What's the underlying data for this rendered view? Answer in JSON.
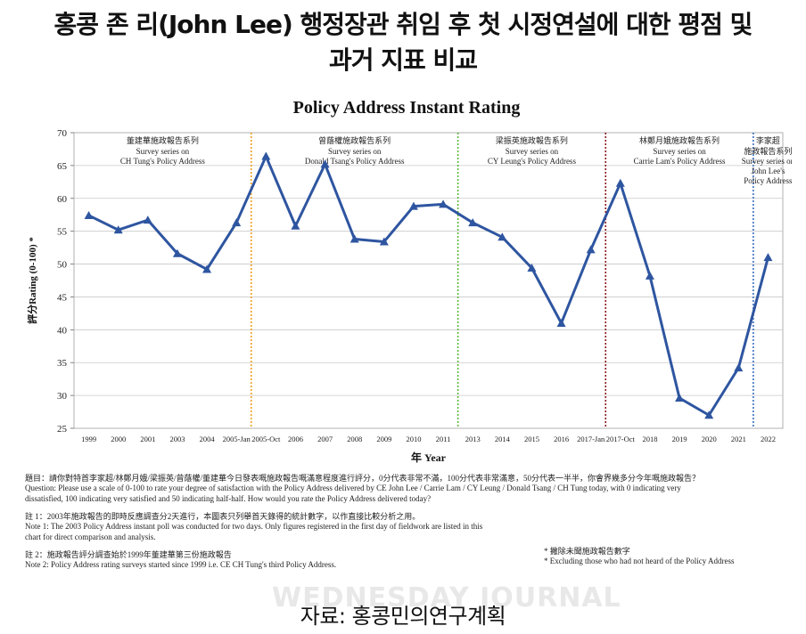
{
  "headline": {
    "line1": "홍콩 존 리(John Lee) 행정장관 취임 후 첫 시정연설에 대한 평점 및",
    "line2": "과거 지표 비교"
  },
  "chart_data": {
    "type": "line",
    "title": "Policy Address Instant Rating",
    "xlabel": "年 Year",
    "ylabel": "評分Rating (0-100) *",
    "ylim": [
      25,
      70
    ],
    "yticks": [
      25,
      30,
      35,
      40,
      45,
      50,
      55,
      60,
      65,
      70
    ],
    "grid": true,
    "color": "#2e55a0",
    "categories": [
      "1999",
      "2000",
      "2001",
      "2003",
      "2004",
      "2005-Jan",
      "2005-Oct",
      "2006",
      "2007",
      "2008",
      "2009",
      "2010",
      "2011",
      "2013",
      "2014",
      "2015",
      "2016",
      "2017-Jan",
      "2017-Oct",
      "2018",
      "2019",
      "2020",
      "2021",
      "2022"
    ],
    "series": [
      {
        "values": [
          57.4,
          55.2,
          56.7,
          51.6,
          49.2,
          56.3,
          66.4,
          55.8,
          65.2,
          53.8,
          53.4,
          58.8,
          59.1,
          56.3,
          54.1,
          49.4,
          41.0,
          52.2,
          62.3,
          48.2,
          29.6,
          27.0,
          34.2,
          51.0
        ]
      }
    ],
    "eras": [
      {
        "label_cn": "董建華施政報告系列",
        "label_en": [
          "Survey series on",
          "CH Tung's Policy Address"
        ],
        "divider_after": null,
        "color": null
      },
      {
        "label_cn": "曾蔭權施政報告系列",
        "label_en": [
          "Survey series on",
          "Donald Tsang's Policy Address"
        ],
        "divider_after": "2005-Jan",
        "color": "#f0a020"
      },
      {
        "label_cn": "梁振英施政報告系列",
        "label_en": [
          "Survey series on",
          "CY Leung's Policy Address"
        ],
        "divider_after": "2011",
        "color": "#5cb83a"
      },
      {
        "label_cn": "林鄭月娥施政報告系列",
        "label_en": [
          "Survey series on",
          "Carrie Lam's Policy Address"
        ],
        "divider_after": "2017-Jan",
        "color": "#8b1a1a"
      },
      {
        "label_cn": "李家超",
        "label_en": [
          "施政報告系列",
          "Survey series on",
          "John Lee's",
          "Policy Address"
        ],
        "divider_after": "2021",
        "color": "#3a70c0"
      }
    ]
  },
  "notes": {
    "question": "題目：請你對特首李家超/林鄭月娥/梁振英/曾蔭權/董建華今日發表嘅施政報告嘅滿意程度進行評分，0分代表非常不滿，100分代表非常滿意，50分代表一半半，你會界幾多分今年嘅施政報告？\nQuestion: Please use a scale of 0-100 to rate your degree of satisfaction with the Policy Address delivered by CE John Lee / Carrie Lam / CY Leung / Donald Tsang / CH Tung today, with 0 indicating very\ndissatisfied, 100 indicating very satisfied and 50 indicating half-half. How would you rate the Policy Address delivered today?",
    "note1": "註 1：2003年施政報告的即時反應調查分2天進行，本圖表只列舉首天錄得的統計數字，以作直接比較分析之用。\nNote 1: The 2003 Policy Address instant poll was conducted for two days. Only figures registered in the first day of fieldwork are listed in this\nchart for direct comparison and analysis.",
    "note2": "註 2：施政報告評分調查始於1999年董建華第三份施政報告\nNote 2: Policy Address rating surveys started since 1999 i.e. CE CH Tung's third Policy Address.",
    "footnote": "* 撇除未聞施政報告數字\n* Excluding  those who had not heard of the Policy Address"
  },
  "watermark": "WEDNESDAY JOURNAL",
  "source": "자료: 홍콩민의연구계획"
}
